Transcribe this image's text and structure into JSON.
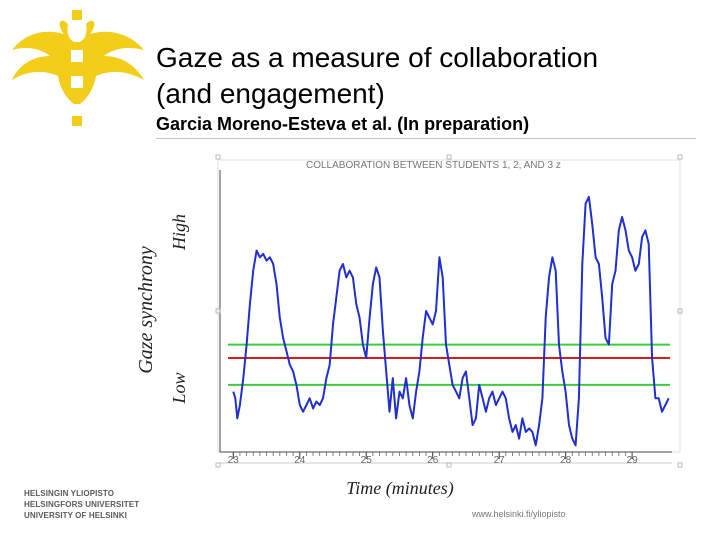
{
  "slide": {
    "title_line1": "Gaze as a measure of collaboration",
    "title_line2": "(and engagement)",
    "subtitle": "Garcia Moreno-Esteva et al. (In preparation)",
    "university_lines": [
      "HELSINGIN YLIOPISTO",
      "HELSINGFORS UNIVERSITET",
      "UNIVERSITY OF HELSINKI"
    ],
    "url": "www.helsinki.fi/yliopisto",
    "flame_logo": "helsinki-flame-logo"
  },
  "chart_data": {
    "type": "line",
    "title": "COLLABORATION BETWEEN STUDENTS 1, 2, AND 3 z",
    "xlabel": "Time (minutes)",
    "ylabel": "Gaze synchrony",
    "y_high_label": "High",
    "y_low_label": "Low",
    "xlim": [
      22.8,
      29.6
    ],
    "ylim": [
      -1.4,
      2.8
    ],
    "x_ticks": [
      23,
      24,
      25,
      26,
      27,
      28,
      29
    ],
    "x_tick_labels": [
      "23",
      "24",
      "25",
      "26",
      "27",
      "28",
      "29"
    ],
    "grid": false,
    "series": [
      {
        "color": "#1f2fd0",
        "x": [
          23.0,
          23.03,
          23.06,
          23.1,
          23.15,
          23.2,
          23.25,
          23.3,
          23.35,
          23.4,
          23.45,
          23.5,
          23.55,
          23.6,
          23.65,
          23.7,
          23.75,
          23.8,
          23.85,
          23.9,
          23.95,
          24.0,
          24.05,
          24.1,
          24.15,
          24.2,
          24.25,
          24.3,
          24.35,
          24.4,
          24.45,
          24.5,
          24.55,
          24.6,
          24.65,
          24.7,
          24.75,
          24.8,
          24.85,
          24.9,
          24.95,
          25.0,
          25.05,
          25.1,
          25.15,
          25.2,
          25.25,
          25.3,
          25.35,
          25.4,
          25.45,
          25.5,
          25.55,
          25.6,
          25.65,
          25.7,
          25.75,
          25.8,
          25.85,
          25.9,
          25.95,
          26.0,
          26.05,
          26.1,
          26.15,
          26.2,
          26.25,
          26.3,
          26.35,
          26.4,
          26.45,
          26.5,
          26.55,
          26.6,
          26.65,
          26.7,
          26.75,
          26.8,
          26.85,
          26.9,
          26.95,
          27.0,
          27.05,
          27.1,
          27.15,
          27.2,
          27.25,
          27.3,
          27.35,
          27.4,
          27.45,
          27.5,
          27.55,
          27.6,
          27.65,
          27.7,
          27.75,
          27.8,
          27.85,
          27.9,
          27.95,
          28.0,
          28.05,
          28.1,
          28.15,
          28.2,
          28.25,
          28.3,
          28.35,
          28.4,
          28.45,
          28.5,
          28.55,
          28.6,
          28.65,
          28.7,
          28.75,
          28.8,
          28.85,
          28.9,
          28.95,
          29.0,
          29.05,
          29.1,
          29.15,
          29.2,
          29.25,
          29.3,
          29.35,
          29.4,
          29.45,
          29.5,
          29.55
        ],
        "y": [
          -0.5,
          -0.6,
          -0.9,
          -0.7,
          -0.3,
          0.2,
          0.8,
          1.3,
          1.6,
          1.5,
          1.55,
          1.45,
          1.5,
          1.4,
          1.1,
          0.6,
          0.3,
          0.1,
          -0.1,
          -0.2,
          -0.4,
          -0.7,
          -0.8,
          -0.7,
          -0.6,
          -0.75,
          -0.65,
          -0.7,
          -0.6,
          -0.3,
          -0.1,
          0.5,
          0.9,
          1.3,
          1.4,
          1.2,
          1.3,
          1.2,
          0.8,
          0.6,
          0.2,
          0.0,
          0.6,
          1.1,
          1.35,
          1.2,
          0.4,
          -0.2,
          -0.8,
          -0.3,
          -0.9,
          -0.5,
          -0.6,
          -0.3,
          -0.7,
          -0.9,
          -0.5,
          -0.2,
          0.3,
          0.7,
          0.6,
          0.5,
          0.7,
          1.5,
          1.2,
          0.2,
          -0.1,
          -0.4,
          -0.5,
          -0.6,
          -0.3,
          -0.2,
          -0.6,
          -1.0,
          -0.9,
          -0.4,
          -0.6,
          -0.8,
          -0.6,
          -0.5,
          -0.7,
          -0.6,
          -0.5,
          -0.6,
          -0.9,
          -1.1,
          -1.0,
          -1.2,
          -0.9,
          -1.1,
          -1.05,
          -1.1,
          -1.3,
          -1.0,
          -0.6,
          0.6,
          1.2,
          1.5,
          1.3,
          0.2,
          -0.2,
          -0.5,
          -1.0,
          -1.2,
          -1.3,
          -0.6,
          1.4,
          2.3,
          2.4,
          2.0,
          1.5,
          1.4,
          0.9,
          0.3,
          0.2,
          1.1,
          1.3,
          1.9,
          2.1,
          1.9,
          1.6,
          1.5,
          1.3,
          1.4,
          1.8,
          1.9,
          1.7,
          0.0,
          -0.6,
          -0.6,
          -0.8,
          -0.7,
          -0.6
        ]
      }
    ],
    "reference_lines": [
      {
        "y": 0.2,
        "color": "#3ecc3e"
      },
      {
        "y": 0.0,
        "color": "#d41c1c"
      },
      {
        "y": -0.4,
        "color": "#3ecc3e"
      }
    ]
  }
}
